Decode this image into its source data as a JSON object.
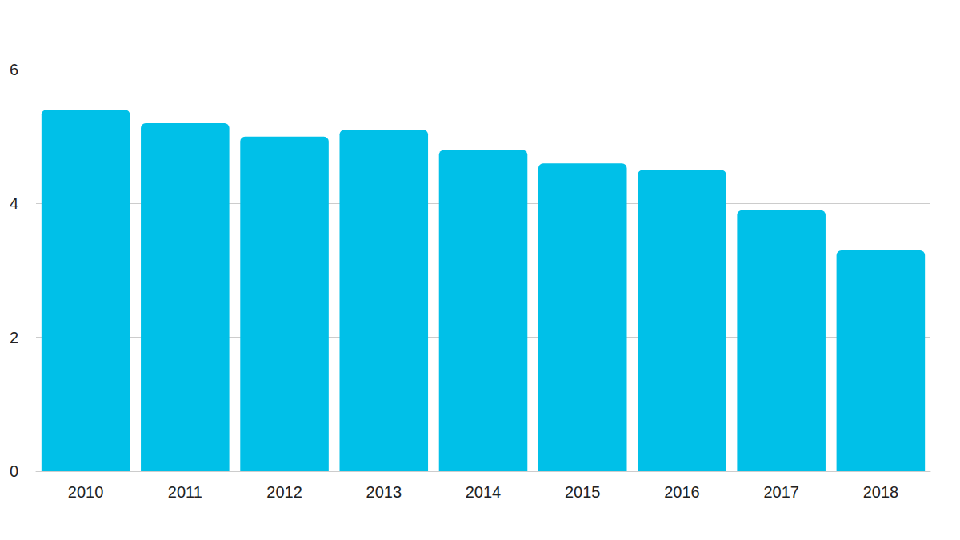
{
  "chart_data": {
    "type": "bar",
    "categories": [
      "2010",
      "2011",
      "2012",
      "2013",
      "2014",
      "2015",
      "2016",
      "2017",
      "2018"
    ],
    "values": [
      5.4,
      5.2,
      5.0,
      5.1,
      4.8,
      4.6,
      4.5,
      3.9,
      3.3
    ],
    "color": "#00c0e8",
    "ylim": [
      0,
      6
    ],
    "yticks": [
      0,
      2,
      4,
      6
    ],
    "grid": true
  }
}
